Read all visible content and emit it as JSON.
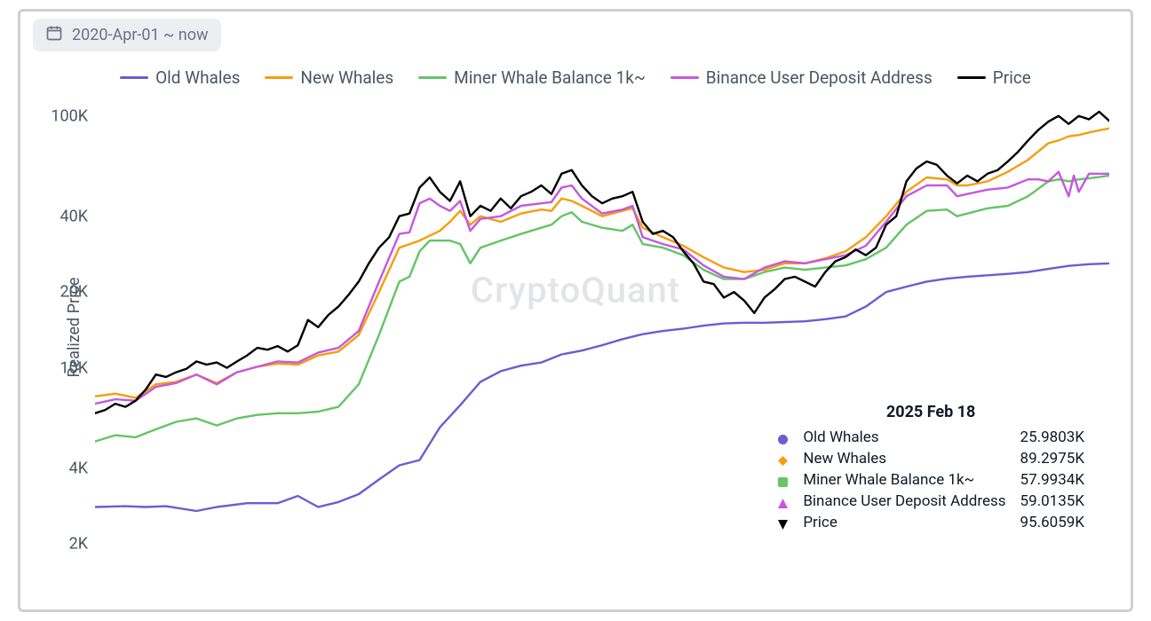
{
  "date_range_label": "2020-Apr-01 ~ now",
  "watermark": "CryptoQuant",
  "y_axis": {
    "label": "Realized Price",
    "scale": "log",
    "min": 2000,
    "max": 110000,
    "ticks": [
      {
        "v": 2000,
        "label": "2K"
      },
      {
        "v": 4000,
        "label": "4K"
      },
      {
        "v": 10000,
        "label": "10K"
      },
      {
        "v": 20000,
        "label": "20K"
      },
      {
        "v": 40000,
        "label": "40K"
      },
      {
        "v": 100000,
        "label": "100K"
      }
    ],
    "label_fontsize": 18,
    "label_color": "#4b5563"
  },
  "legend": [
    {
      "key": "old_whales",
      "label": "Old Whales",
      "color": "#6b5dd3"
    },
    {
      "key": "new_whales",
      "label": "New Whales",
      "color": "#f59e0b"
    },
    {
      "key": "miner",
      "label": "Miner Whale Balance 1k~",
      "color": "#65c466"
    },
    {
      "key": "binance",
      "label": "Binance User Deposit Address",
      "color": "#c657e0"
    },
    {
      "key": "price",
      "label": "Price",
      "color": "#000000"
    }
  ],
  "tooltip": {
    "date": "2025 Feb 18",
    "rows": [
      {
        "key": "old_whales",
        "marker": "circle",
        "color": "#6b5dd3",
        "label": "Old Whales",
        "value": "25.9803K"
      },
      {
        "key": "new_whales",
        "marker": "diamond",
        "color": "#f59e0b",
        "label": "New Whales",
        "value": "89.2975K"
      },
      {
        "key": "miner",
        "marker": "square",
        "color": "#65c466",
        "label": "Miner Whale Balance 1k~",
        "value": "57.9934K"
      },
      {
        "key": "binance",
        "marker": "triangle-up",
        "color": "#c657e0",
        "label": "Binance User Deposit Address",
        "value": "59.0135K"
      },
      {
        "key": "price",
        "marker": "triangle-down",
        "color": "#000000",
        "label": "Price",
        "value": "95.6059K"
      }
    ]
  },
  "series": {
    "old_whales": {
      "color": "#6b5dd3",
      "width": 2.4,
      "points": [
        [
          0,
          2800
        ],
        [
          3,
          2820
        ],
        [
          5,
          2800
        ],
        [
          7,
          2820
        ],
        [
          10,
          2700
        ],
        [
          12,
          2800
        ],
        [
          15,
          2900
        ],
        [
          18,
          2900
        ],
        [
          20,
          3100
        ],
        [
          22,
          2800
        ],
        [
          24,
          2930
        ],
        [
          26,
          3150
        ],
        [
          28,
          3600
        ],
        [
          30,
          4100
        ],
        [
          32,
          4300
        ],
        [
          34,
          5800
        ],
        [
          36,
          7100
        ],
        [
          38,
          8800
        ],
        [
          40,
          9700
        ],
        [
          42,
          10200
        ],
        [
          44,
          10500
        ],
        [
          46,
          11300
        ],
        [
          48,
          11700
        ],
        [
          50,
          12300
        ],
        [
          52,
          13000
        ],
        [
          54,
          13600
        ],
        [
          56,
          14000
        ],
        [
          58,
          14300
        ],
        [
          60,
          14700
        ],
        [
          62,
          15000
        ],
        [
          64,
          15100
        ],
        [
          66,
          15100
        ],
        [
          68,
          15200
        ],
        [
          70,
          15300
        ],
        [
          72,
          15600
        ],
        [
          74,
          16000
        ],
        [
          76,
          17500
        ],
        [
          78,
          20000
        ],
        [
          80,
          21000
        ],
        [
          82,
          22000
        ],
        [
          84,
          22600
        ],
        [
          86,
          23000
        ],
        [
          88,
          23300
        ],
        [
          90,
          23600
        ],
        [
          92,
          24000
        ],
        [
          94,
          24700
        ],
        [
          96,
          25400
        ],
        [
          98,
          25800
        ],
        [
          100,
          25980
        ]
      ]
    },
    "new_whales": {
      "color": "#f59e0b",
      "width": 2.4,
      "points": [
        [
          0,
          7700
        ],
        [
          2,
          7900
        ],
        [
          4,
          7600
        ],
        [
          6,
          8600
        ],
        [
          8,
          8800
        ],
        [
          10,
          9400
        ],
        [
          12,
          8700
        ],
        [
          14,
          9600
        ],
        [
          16,
          10100
        ],
        [
          18,
          10400
        ],
        [
          20,
          10300
        ],
        [
          22,
          11200
        ],
        [
          24,
          11600
        ],
        [
          26,
          13500
        ],
        [
          28,
          20000
        ],
        [
          30,
          30000
        ],
        [
          32,
          32000
        ],
        [
          34,
          35000
        ],
        [
          35,
          38000
        ],
        [
          36,
          42000
        ],
        [
          37,
          37000
        ],
        [
          38,
          40000
        ],
        [
          40,
          38000
        ],
        [
          42,
          41000
        ],
        [
          44,
          42500
        ],
        [
          45,
          42000
        ],
        [
          46,
          47000
        ],
        [
          47,
          46000
        ],
        [
          48,
          44000
        ],
        [
          50,
          40000
        ],
        [
          52,
          42000
        ],
        [
          53,
          43000
        ],
        [
          54,
          36000
        ],
        [
          56,
          33000
        ],
        [
          58,
          30500
        ],
        [
          60,
          27500
        ],
        [
          62,
          25000
        ],
        [
          64,
          24000
        ],
        [
          66,
          24500
        ],
        [
          68,
          26000
        ],
        [
          70,
          26000
        ],
        [
          72,
          27200
        ],
        [
          74,
          29000
        ],
        [
          76,
          33000
        ],
        [
          78,
          40000
        ],
        [
          80,
          50000
        ],
        [
          82,
          57000
        ],
        [
          84,
          56000
        ],
        [
          85,
          53000
        ],
        [
          86,
          53000
        ],
        [
          88,
          55000
        ],
        [
          90,
          60000
        ],
        [
          92,
          67000
        ],
        [
          94,
          78000
        ],
        [
          95,
          80000
        ],
        [
          96,
          83000
        ],
        [
          97,
          84000
        ],
        [
          98,
          86000
        ],
        [
          100,
          89298
        ]
      ]
    },
    "miner": {
      "color": "#65c466",
      "width": 2.4,
      "points": [
        [
          0,
          5100
        ],
        [
          2,
          5400
        ],
        [
          4,
          5300
        ],
        [
          6,
          5700
        ],
        [
          8,
          6100
        ],
        [
          10,
          6300
        ],
        [
          12,
          5900
        ],
        [
          14,
          6300
        ],
        [
          16,
          6500
        ],
        [
          18,
          6600
        ],
        [
          20,
          6600
        ],
        [
          22,
          6700
        ],
        [
          24,
          7000
        ],
        [
          26,
          8600
        ],
        [
          28,
          13500
        ],
        [
          30,
          22000
        ],
        [
          31,
          23000
        ],
        [
          32,
          29000
        ],
        [
          33,
          32000
        ],
        [
          34,
          32000
        ],
        [
          35,
          32000
        ],
        [
          36,
          31000
        ],
        [
          37,
          26000
        ],
        [
          38,
          30000
        ],
        [
          40,
          32000
        ],
        [
          42,
          34000
        ],
        [
          44,
          36000
        ],
        [
          45,
          37000
        ],
        [
          46,
          40000
        ],
        [
          47,
          41500
        ],
        [
          48,
          38000
        ],
        [
          50,
          36000
        ],
        [
          52,
          35000
        ],
        [
          53,
          37000
        ],
        [
          54,
          31000
        ],
        [
          56,
          30000
        ],
        [
          58,
          28000
        ],
        [
          60,
          24500
        ],
        [
          62,
          22500
        ],
        [
          64,
          22500
        ],
        [
          66,
          24000
        ],
        [
          68,
          25000
        ],
        [
          70,
          24500
        ],
        [
          72,
          25000
        ],
        [
          74,
          25500
        ],
        [
          76,
          27000
        ],
        [
          78,
          30000
        ],
        [
          80,
          37000
        ],
        [
          82,
          42000
        ],
        [
          84,
          42500
        ],
        [
          85,
          40000
        ],
        [
          86,
          41000
        ],
        [
          88,
          43000
        ],
        [
          90,
          44000
        ],
        [
          92,
          48000
        ],
        [
          94,
          55000
        ],
        [
          95,
          56000
        ],
        [
          96,
          55000
        ],
        [
          97,
          56000
        ],
        [
          98,
          56500
        ],
        [
          100,
          57993
        ]
      ]
    },
    "binance": {
      "color": "#c657e0",
      "width": 2.4,
      "points": [
        [
          0,
          7200
        ],
        [
          2,
          7500
        ],
        [
          4,
          7400
        ],
        [
          6,
          8400
        ],
        [
          8,
          8700
        ],
        [
          10,
          9400
        ],
        [
          12,
          8600
        ],
        [
          14,
          9600
        ],
        [
          16,
          10100
        ],
        [
          18,
          10600
        ],
        [
          20,
          10500
        ],
        [
          22,
          11500
        ],
        [
          24,
          12000
        ],
        [
          26,
          14000
        ],
        [
          28,
          22000
        ],
        [
          30,
          34000
        ],
        [
          31,
          34500
        ],
        [
          32,
          45000
        ],
        [
          33,
          47000
        ],
        [
          34,
          44000
        ],
        [
          35,
          42000
        ],
        [
          36,
          46000
        ],
        [
          37,
          35000
        ],
        [
          38,
          39000
        ],
        [
          40,
          40000
        ],
        [
          42,
          44000
        ],
        [
          44,
          45000
        ],
        [
          45,
          45500
        ],
        [
          46,
          52000
        ],
        [
          47,
          53000
        ],
        [
          48,
          47000
        ],
        [
          50,
          41000
        ],
        [
          52,
          42500
        ],
        [
          53,
          44000
        ],
        [
          54,
          33000
        ],
        [
          56,
          31000
        ],
        [
          58,
          29500
        ],
        [
          60,
          25500
        ],
        [
          62,
          23000
        ],
        [
          64,
          22500
        ],
        [
          66,
          25000
        ],
        [
          68,
          26500
        ],
        [
          70,
          26000
        ],
        [
          72,
          27000
        ],
        [
          74,
          28000
        ],
        [
          76,
          30500
        ],
        [
          78,
          38000
        ],
        [
          80,
          48000
        ],
        [
          82,
          53000
        ],
        [
          84,
          53000
        ],
        [
          85,
          48000
        ],
        [
          86,
          49000
        ],
        [
          88,
          51000
        ],
        [
          90,
          52000
        ],
        [
          92,
          56000
        ],
        [
          93,
          56000
        ],
        [
          94,
          55000
        ],
        [
          95,
          60000
        ],
        [
          96,
          48000
        ],
        [
          96.5,
          58000
        ],
        [
          97,
          50000
        ],
        [
          98,
          59000
        ],
        [
          100,
          59014
        ]
      ]
    },
    "price": {
      "color": "#000000",
      "width": 2.6,
      "points": [
        [
          0,
          6600
        ],
        [
          1,
          6800
        ],
        [
          2,
          7200
        ],
        [
          3,
          7000
        ],
        [
          4,
          7400
        ],
        [
          5,
          8200
        ],
        [
          6,
          9400
        ],
        [
          7,
          9200
        ],
        [
          8,
          9600
        ],
        [
          9,
          9900
        ],
        [
          10,
          10600
        ],
        [
          11,
          10300
        ],
        [
          12,
          10500
        ],
        [
          13,
          10000
        ],
        [
          14,
          10600
        ],
        [
          15,
          11200
        ],
        [
          16,
          12000
        ],
        [
          17,
          11800
        ],
        [
          18,
          12200
        ],
        [
          19,
          11600
        ],
        [
          20,
          12300
        ],
        [
          21,
          15500
        ],
        [
          22,
          14500
        ],
        [
          23,
          16200
        ],
        [
          24,
          17500
        ],
        [
          25,
          19500
        ],
        [
          26,
          22000
        ],
        [
          27,
          26000
        ],
        [
          28,
          30000
        ],
        [
          29,
          33000
        ],
        [
          30,
          40000
        ],
        [
          31,
          41000
        ],
        [
          32,
          52000
        ],
        [
          33,
          57000
        ],
        [
          34,
          50000
        ],
        [
          35,
          46000
        ],
        [
          36,
          55000
        ],
        [
          37,
          40000
        ],
        [
          38,
          44000
        ],
        [
          39,
          42000
        ],
        [
          40,
          47000
        ],
        [
          41,
          43000
        ],
        [
          42,
          48000
        ],
        [
          43,
          50000
        ],
        [
          44,
          53000
        ],
        [
          45,
          49000
        ],
        [
          46,
          59000
        ],
        [
          47,
          61000
        ],
        [
          48,
          53000
        ],
        [
          49,
          48000
        ],
        [
          50,
          45000
        ],
        [
          51,
          47000
        ],
        [
          52,
          48000
        ],
        [
          53,
          50000
        ],
        [
          54,
          38000
        ],
        [
          55,
          34000
        ],
        [
          56,
          35000
        ],
        [
          57,
          33000
        ],
        [
          58,
          29000
        ],
        [
          59,
          26000
        ],
        [
          60,
          22000
        ],
        [
          61,
          21500
        ],
        [
          62,
          19000
        ],
        [
          63,
          20000
        ],
        [
          64,
          18500
        ],
        [
          65,
          16500
        ],
        [
          66,
          19000
        ],
        [
          67,
          20500
        ],
        [
          68,
          22500
        ],
        [
          69,
          23000
        ],
        [
          70,
          22000
        ],
        [
          71,
          21000
        ],
        [
          72,
          24000
        ],
        [
          73,
          26500
        ],
        [
          74,
          27500
        ],
        [
          75,
          29500
        ],
        [
          76,
          28000
        ],
        [
          77,
          30000
        ],
        [
          78,
          37000
        ],
        [
          79,
          40000
        ],
        [
          80,
          55000
        ],
        [
          81,
          62000
        ],
        [
          82,
          66000
        ],
        [
          83,
          64000
        ],
        [
          84,
          58000
        ],
        [
          85,
          54000
        ],
        [
          86,
          58000
        ],
        [
          87,
          55000
        ],
        [
          88,
          59000
        ],
        [
          89,
          61000
        ],
        [
          90,
          66000
        ],
        [
          91,
          72000
        ],
        [
          92,
          80000
        ],
        [
          93,
          88000
        ],
        [
          94,
          95000
        ],
        [
          95,
          100000
        ],
        [
          96,
          93000
        ],
        [
          97,
          100000
        ],
        [
          98,
          97000
        ],
        [
          99,
          104000
        ],
        [
          100,
          95606
        ]
      ]
    }
  },
  "colors": {
    "frame_border": "#d0d0d0",
    "background": "#ffffff",
    "text": "#4b5563",
    "axis": "#6b7280",
    "watermark": "#e2e4e8"
  }
}
